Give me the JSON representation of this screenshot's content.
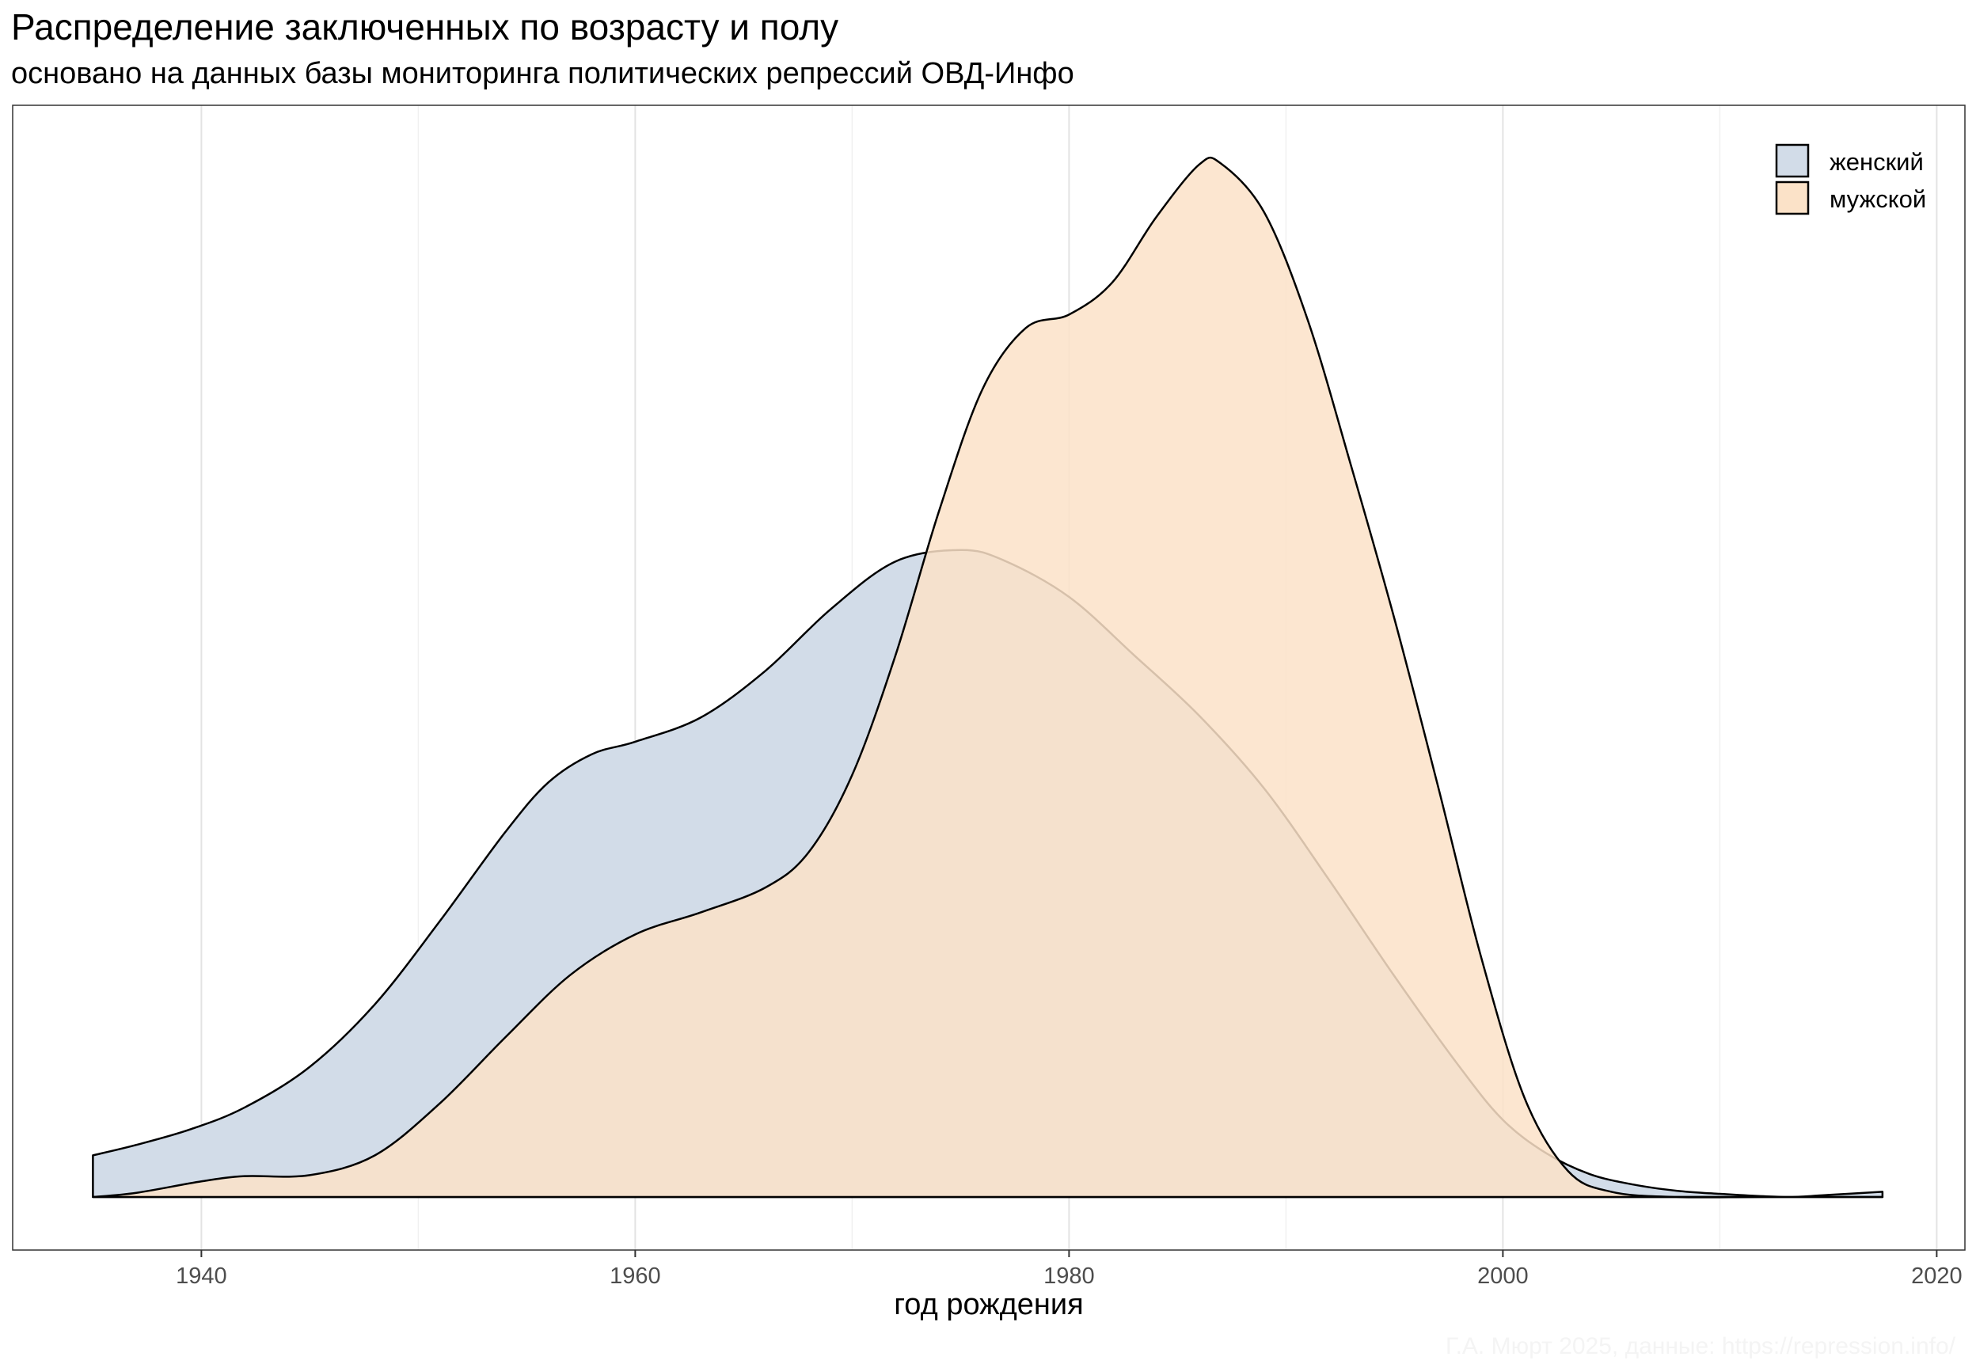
{
  "chart_data": {
    "type": "area",
    "title": "Распределение заключенных по возрасту и полу",
    "subtitle": "основано на данных базы мониторинга политических репрессий ОВД-Инфо",
    "xlabel": "год рождения",
    "ylabel": "",
    "xlim": [
      1931.3,
      2021.3
    ],
    "ylim": [
      0,
      1.0
    ],
    "x_ticks": [
      "1940",
      "1960",
      "1980",
      "2000",
      "2020"
    ],
    "grid": true,
    "legend_position": "top-right",
    "caption": "Г.А. Мюрт 2025, данные: https://repression.info/",
    "series": [
      {
        "name": "женский",
        "color": "#d2dce8",
        "x": [
          1935,
          1937,
          1939.5,
          1942,
          1945,
          1948,
          1951,
          1954,
          1956,
          1958,
          1960,
          1963,
          1966,
          1969,
          1972,
          1975,
          1977,
          1980,
          1983,
          1986,
          1989,
          1992,
          1995,
          1998,
          2000,
          2002,
          2004,
          2006,
          2008,
          2010,
          2013,
          2015,
          2017.5
        ],
        "y": [
          0.04,
          0.05,
          0.065,
          0.086,
          0.125,
          0.185,
          0.265,
          0.35,
          0.398,
          0.425,
          0.437,
          0.46,
          0.505,
          0.564,
          0.61,
          0.621,
          0.611,
          0.576,
          0.52,
          0.462,
          0.392,
          0.304,
          0.212,
          0.125,
          0.074,
          0.042,
          0.022,
          0.012,
          0.006,
          0.003,
          0.0,
          0.002,
          0.005
        ]
      },
      {
        "name": "мужской",
        "color": "#fbe2c8",
        "x": [
          1935,
          1937,
          1940,
          1942,
          1945,
          1948,
          1951,
          1954,
          1957,
          1960,
          1963,
          1966,
          1968,
          1970,
          1972,
          1974,
          1976,
          1978,
          1980,
          1982,
          1984,
          1986,
          1987,
          1989,
          1991,
          1993,
          1995,
          1997,
          1999,
          2001,
          2003,
          2005,
          2008,
          2012,
          2017.5
        ],
        "y": [
          0.0,
          0.004,
          0.015,
          0.02,
          0.021,
          0.04,
          0.09,
          0.153,
          0.213,
          0.252,
          0.273,
          0.297,
          0.331,
          0.405,
          0.52,
          0.658,
          0.775,
          0.834,
          0.847,
          0.878,
          0.94,
          0.991,
          0.992,
          0.945,
          0.842,
          0.702,
          0.555,
          0.395,
          0.23,
          0.095,
          0.025,
          0.005,
          0.0,
          0.0,
          0.0
        ]
      }
    ]
  }
}
